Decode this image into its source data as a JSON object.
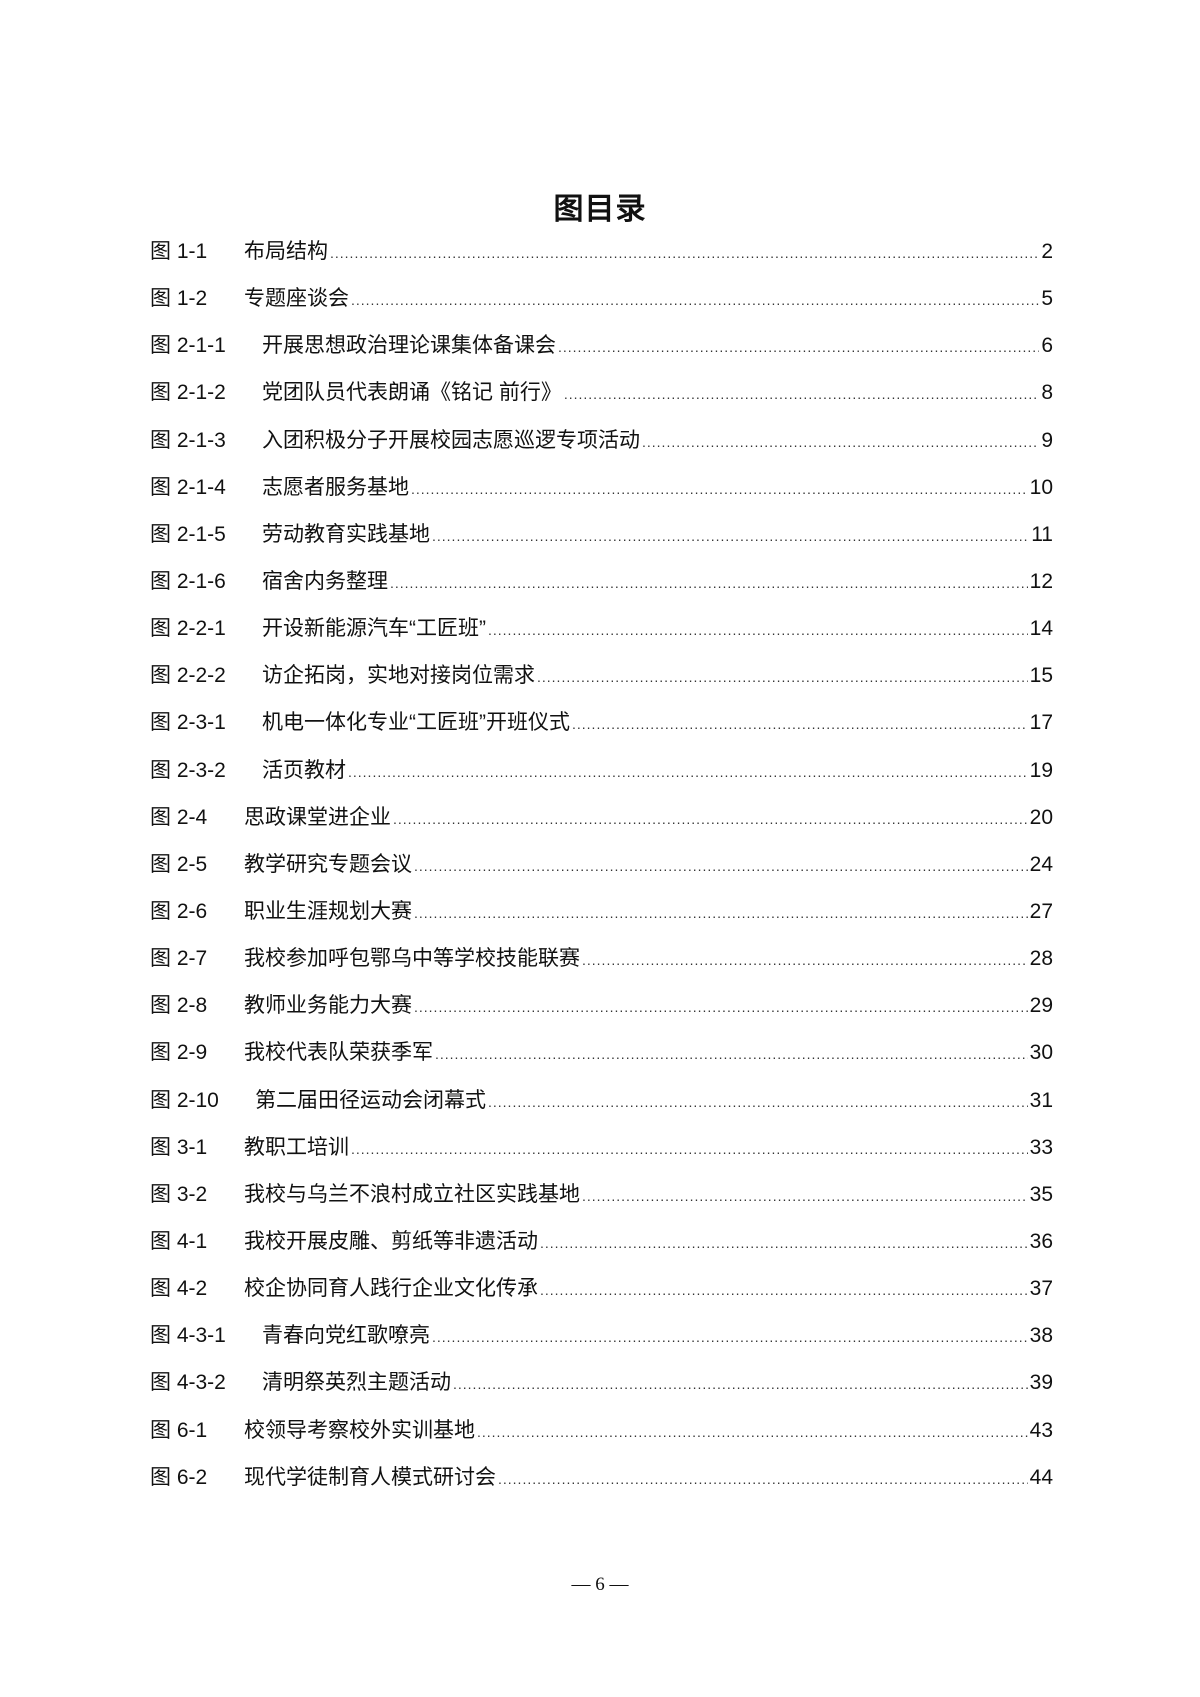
{
  "title": "图目录",
  "entries": [
    {
      "label": "图 1-1",
      "text": "布局结构",
      "page": "2",
      "indent": 94
    },
    {
      "label": "图 1-2",
      "text": "专题座谈会",
      "page": "5",
      "indent": 94
    },
    {
      "label": "图 2-1-1",
      "text": "开展思想政治理论课集体备课会",
      "page": "6",
      "indent": 112
    },
    {
      "label": "图 2-1-2",
      "text": "党团队员代表朗诵《铭记  前行》",
      "page": "8",
      "indent": 112
    },
    {
      "label": "图 2-1-3",
      "text": "入团积极分子开展校园志愿巡逻专项活动",
      "page": "9",
      "indent": 112
    },
    {
      "label": "图 2-1-4",
      "text": "志愿者服务基地",
      "page": "10",
      "indent": 112
    },
    {
      "label": "图 2-1-5",
      "text": "劳动教育实践基地",
      "page": "11",
      "indent": 112
    },
    {
      "label": "图 2-1-6",
      "text": "宿舍内务整理",
      "page": "12",
      "indent": 112
    },
    {
      "label": "图 2-2-1",
      "text": "开设新能源汽车“工匠班”",
      "page": "14",
      "indent": 112
    },
    {
      "label": "图 2-2-2",
      "text": "访企拓岗，实地对接岗位需求",
      "page": "15",
      "indent": 112
    },
    {
      "label": "图 2-3-1",
      "text": "机电一体化专业“工匠班”开班仪式",
      "page": "17",
      "indent": 112
    },
    {
      "label": "图 2-3-2",
      "text": "活页教材",
      "page": "19",
      "indent": 112
    },
    {
      "label": "图 2-4",
      "text": "思政课堂进企业",
      "page": "20",
      "indent": 94
    },
    {
      "label": "图 2-5",
      "text": "教学研究专题会议",
      "page": "24",
      "indent": 94
    },
    {
      "label": "图 2-6",
      "text": "职业生涯规划大赛",
      "page": "27",
      "indent": 94
    },
    {
      "label": "图 2-7",
      "text": "我校参加呼包鄂乌中等学校技能联赛",
      "page": "28",
      "indent": 94
    },
    {
      "label": "图 2-8",
      "text": "教师业务能力大赛",
      "page": "29",
      "indent": 94
    },
    {
      "label": "图 2-9",
      "text": "我校代表队荣获季军",
      "page": "30",
      "indent": 94
    },
    {
      "label": "图 2-10",
      "text": "第二届田径运动会闭幕式",
      "page": "31",
      "indent": 105
    },
    {
      "label": "图 3-1",
      "text": "教职工培训",
      "page": "33",
      "indent": 94
    },
    {
      "label": "图 3-2",
      "text": "我校与乌兰不浪村成立社区实践基地",
      "page": "35",
      "indent": 94
    },
    {
      "label": "图 4-1",
      "text": "我校开展皮雕、剪纸等非遗活动",
      "page": "36",
      "indent": 94
    },
    {
      "label": "图 4-2",
      "text": "校企协同育人践行企业文化传承",
      "page": "37",
      "indent": 94
    },
    {
      "label": "图 4-3-1",
      "text": "青春向党红歌嘹亮",
      "page": "38",
      "indent": 112
    },
    {
      "label": "图 4-3-2",
      "text": "清明祭英烈主题活动",
      "page": "39",
      "indent": 112
    },
    {
      "label": "图 6-1",
      "text": "校领导考察校外实训基地",
      "page": "43",
      "indent": 94
    },
    {
      "label": "图 6-2",
      "text": "现代学徒制育人模式研讨会",
      "page": "44",
      "indent": 94
    }
  ],
  "footer": "— 6 —"
}
